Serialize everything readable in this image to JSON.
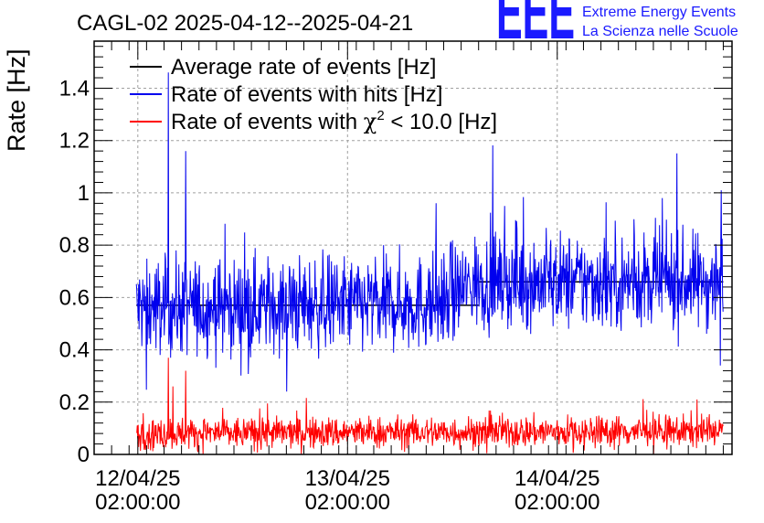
{
  "chart_data": {
    "type": "line",
    "title": "CAGL-02 2025-04-12--2025-04-21",
    "xlabel": "",
    "ylabel": "Rate [Hz]",
    "ylim": [
      0,
      1.58
    ],
    "yticks": [
      0,
      0.2,
      0.4,
      0.6,
      0.8,
      1,
      1.2,
      1.4
    ],
    "ytick_labels": [
      "0",
      "0.2",
      "0.4",
      "0.6",
      "0.8",
      "1",
      "1.2",
      "1.4"
    ],
    "x_axis": {
      "type": "time",
      "start": "2025-04-11 21:00:00",
      "end": "2025-04-14 22:00:00",
      "ticks": [
        {
          "time": "2025-04-12 02:00:00",
          "line1": "12/04/25",
          "line2": "02:00:00"
        },
        {
          "time": "2025-04-13 02:00:00",
          "line1": "13/04/25",
          "line2": "02:00:00"
        },
        {
          "time": "2025-04-14 02:00:00",
          "line1": "14/04/25",
          "line2": "02:00:00"
        }
      ]
    },
    "grid": true,
    "legend_position": "top-left",
    "series": [
      {
        "name": "Average rate of events [Hz]",
        "color": "#000000",
        "x_start": "2025-04-12 01:50:00",
        "x_end": "2025-04-14 21:00:00",
        "segments": [
          {
            "x_start": "2025-04-12 01:50:00",
            "x_end": "2025-04-13 17:00:00",
            "y": 0.57
          },
          {
            "x_start": "2025-04-13 17:00:00",
            "x_end": "2025-04-14 21:00:00",
            "y": 0.66
          }
        ]
      },
      {
        "name": "Rate of events with hits [Hz]",
        "color": "#0000ee",
        "x_start": "2025-04-12 01:50:00",
        "x_end": "2025-04-14 21:00:00",
        "baseline": [
          {
            "time": "2025-04-12 01:50:00",
            "y": 0.56
          },
          {
            "time": "2025-04-13 12:00:00",
            "y": 0.58
          },
          {
            "time": "2025-04-13 17:00:00",
            "y": 0.66
          },
          {
            "time": "2025-04-14 21:00:00",
            "y": 0.66
          }
        ],
        "spread": 0.09,
        "peaks": [
          {
            "time": "2025-04-12 05:30:00",
            "y": 1.46
          },
          {
            "time": "2025-04-12 07:30:00",
            "y": 1.16
          },
          {
            "time": "2025-04-14 20:45:00",
            "y": 1.01
          },
          {
            "time": "2025-04-14 14:00:00",
            "y": 0.98
          },
          {
            "time": "2025-04-13 20:00:00",
            "y": 0.95
          },
          {
            "time": "2025-04-14 20:40:00",
            "y": 0.34
          }
        ]
      },
      {
        "name": "Rate of events with χ² < 10.0 [Hz]",
        "color": "#ff0000",
        "x_start": "2025-04-12 01:50:00",
        "x_end": "2025-04-14 21:00:00",
        "baseline": [
          {
            "time": "2025-04-12 01:50:00",
            "y": 0.08
          },
          {
            "time": "2025-04-14 21:00:00",
            "y": 0.09
          }
        ],
        "spread": 0.03,
        "peaks": [
          {
            "time": "2025-04-12 05:30:00",
            "y": 0.37
          },
          {
            "time": "2025-04-12 07:30:00",
            "y": 0.32
          },
          {
            "time": "2025-04-12 06:00:00",
            "y": 0.26
          },
          {
            "time": "2025-04-14 18:00:00",
            "y": 0.21
          }
        ]
      }
    ],
    "legend_entries": [
      {
        "key": "avg",
        "color": "#000000",
        "text": "Average rate of events [Hz]"
      },
      {
        "key": "hits",
        "color": "#0000ee",
        "text": "Rate of events with hits [Hz]"
      },
      {
        "key": "chi",
        "color": "#ff0000",
        "pre": "Rate of events with ",
        "sym": "χ",
        "sup": "2",
        "post": " < 10.0 [Hz]"
      }
    ]
  },
  "logo": {
    "mark": "EEE",
    "line1": "Extreme Energy Events",
    "line2": "La Scienza nelle Scuole",
    "color": "#1a1aff"
  }
}
